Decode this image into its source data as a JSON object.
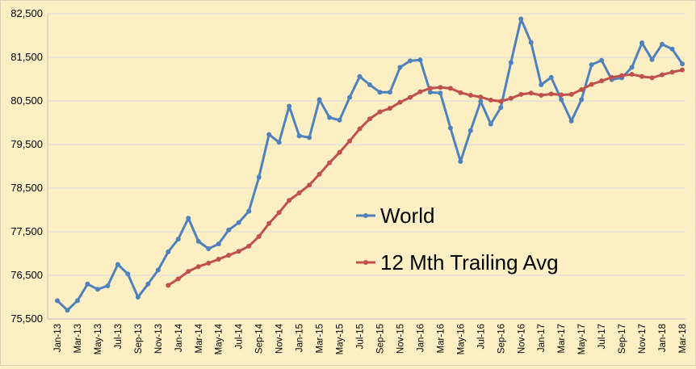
{
  "chart_data": {
    "type": "line",
    "xlabel": "",
    "ylabel": "",
    "ylim": [
      75500,
      82500
    ],
    "yticks": [
      75500,
      76500,
      77500,
      78500,
      79500,
      80500,
      81500,
      82500
    ],
    "ytick_labels": [
      "75,500",
      "76,500",
      "77,500",
      "78,500",
      "79,500",
      "80,500",
      "81,500",
      "82,500"
    ],
    "grid": "horizontal",
    "legend_position": "center-right",
    "x": [
      "Jan-13",
      "Feb-13",
      "Mar-13",
      "Apr-13",
      "May-13",
      "Jun-13",
      "Jul-13",
      "Aug-13",
      "Sep-13",
      "Oct-13",
      "Nov-13",
      "Dec-13",
      "Jan-14",
      "Feb-14",
      "Mar-14",
      "Apr-14",
      "May-14",
      "Jun-14",
      "Jul-14",
      "Aug-14",
      "Sep-14",
      "Oct-14",
      "Nov-14",
      "Dec-14",
      "Jan-15",
      "Feb-15",
      "Mar-15",
      "Apr-15",
      "May-15",
      "Jun-15",
      "Jul-15",
      "Aug-15",
      "Sep-15",
      "Oct-15",
      "Nov-15",
      "Dec-15",
      "Jan-16",
      "Feb-16",
      "Mar-16",
      "Apr-16",
      "May-16",
      "Jun-16",
      "Jul-16",
      "Aug-16",
      "Sep-16",
      "Oct-16",
      "Nov-16",
      "Dec-16",
      "Jan-17",
      "Feb-17",
      "Mar-17",
      "Apr-17",
      "May-17",
      "Jun-17",
      "Jul-17",
      "Aug-17",
      "Sep-17",
      "Oct-17",
      "Nov-17",
      "Dec-17",
      "Jan-18",
      "Feb-18",
      "Mar-18"
    ],
    "xtick_labels": [
      "Jan-13",
      "Mar-13",
      "May-13",
      "Jul-13",
      "Sep-13",
      "Nov-13",
      "Jan-14",
      "Mar-14",
      "May-14",
      "Jul-14",
      "Sep-14",
      "Nov-14",
      "Jan-15",
      "Mar-15",
      "May-15",
      "Jul-15",
      "Sep-15",
      "Nov-15",
      "Jan-16",
      "Mar-16",
      "May-16",
      "Jul-16",
      "Sep-16",
      "Nov-16",
      "Jan-17",
      "Mar-17",
      "May-17",
      "Jul-17",
      "Sep-17",
      "Nov-17",
      "Jan-18",
      "Mar-18"
    ],
    "series": [
      {
        "name": "World",
        "color": "#4F81BD",
        "values": [
          75920,
          75700,
          75920,
          76300,
          76180,
          76260,
          76750,
          76530,
          76000,
          76300,
          76620,
          77040,
          77330,
          77810,
          77280,
          77110,
          77220,
          77540,
          77710,
          77970,
          78750,
          79730,
          79550,
          80380,
          79700,
          79660,
          80530,
          80120,
          80060,
          80580,
          81060,
          80870,
          80700,
          80700,
          81270,
          81420,
          81440,
          80700,
          80680,
          79880,
          79110,
          79820,
          80490,
          79970,
          80350,
          81380,
          82380,
          81840,
          80870,
          81040,
          80530,
          80040,
          80530,
          81330,
          81430,
          80990,
          81030,
          81270,
          81830,
          81450,
          81800,
          81690,
          81350
        ]
      },
      {
        "name": "12 Mth Trailing Avg",
        "color": "#C0504D",
        "values": [
          null,
          null,
          null,
          null,
          null,
          null,
          null,
          null,
          null,
          null,
          null,
          76270,
          76420,
          76590,
          76700,
          76780,
          76870,
          76960,
          77050,
          77170,
          77390,
          77690,
          77940,
          78220,
          78390,
          78570,
          78820,
          79080,
          79320,
          79580,
          79860,
          80090,
          80250,
          80330,
          80470,
          80580,
          80710,
          80790,
          80810,
          80790,
          80690,
          80630,
          80590,
          80520,
          80490,
          80560,
          80650,
          80680,
          80630,
          80660,
          80640,
          80650,
          80760,
          80880,
          80960,
          81040,
          81080,
          81110,
          81060,
          81030,
          81100,
          81160,
          81210
        ]
      }
    ]
  }
}
